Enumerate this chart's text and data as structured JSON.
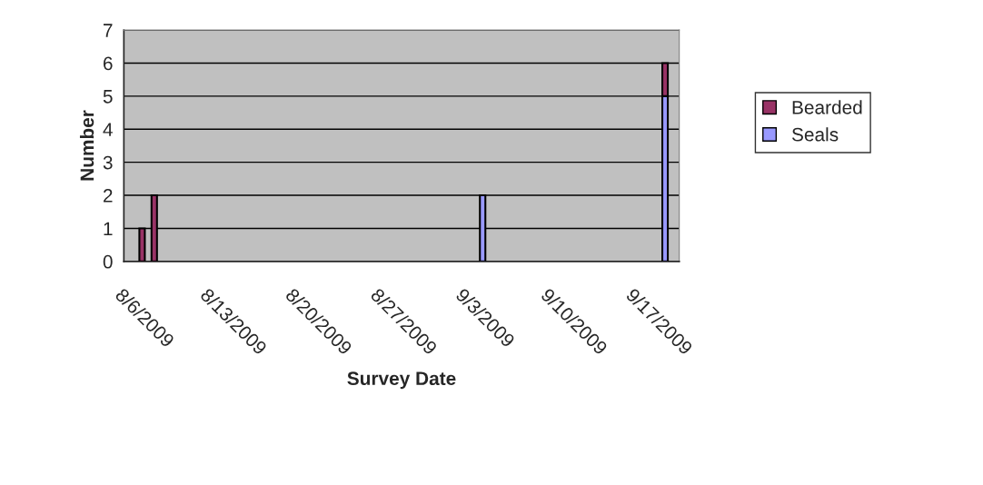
{
  "chart_data": {
    "type": "bar",
    "xlabel": "Survey Date",
    "ylabel": "Number",
    "stacked": true,
    "x": [
      "2009-08-07T12:00",
      "2009-08-08T12:00",
      "2009-09-04T12:00",
      "2009-09-19T12:00"
    ],
    "series": [
      {
        "name": "Seals",
        "color": "#9999ff",
        "values": [
          null,
          null,
          2,
          5
        ]
      },
      {
        "name": "Bearded",
        "color": "#993366",
        "values": [
          1,
          2,
          null,
          1
        ]
      }
    ],
    "xlim": [
      "2009-08-06",
      "2009-09-20T16:00"
    ],
    "xticks": [
      {
        "value": "2009-08-06",
        "label": "8/6/2009"
      },
      {
        "value": "2009-08-13",
        "label": "8/13/2009"
      },
      {
        "value": "2009-08-20",
        "label": "8/20/2009"
      },
      {
        "value": "2009-08-27",
        "label": "8/27/2009"
      },
      {
        "value": "2009-09-03",
        "label": "9/3/2009"
      },
      {
        "value": "2009-09-10",
        "label": "9/10/2009"
      },
      {
        "value": "2009-09-17",
        "label": "9/17/2009"
      }
    ],
    "ylim": [
      0,
      7
    ],
    "yticks": [
      0,
      1,
      2,
      3,
      4,
      5,
      6,
      7
    ],
    "grid": "y",
    "legend": "right"
  }
}
